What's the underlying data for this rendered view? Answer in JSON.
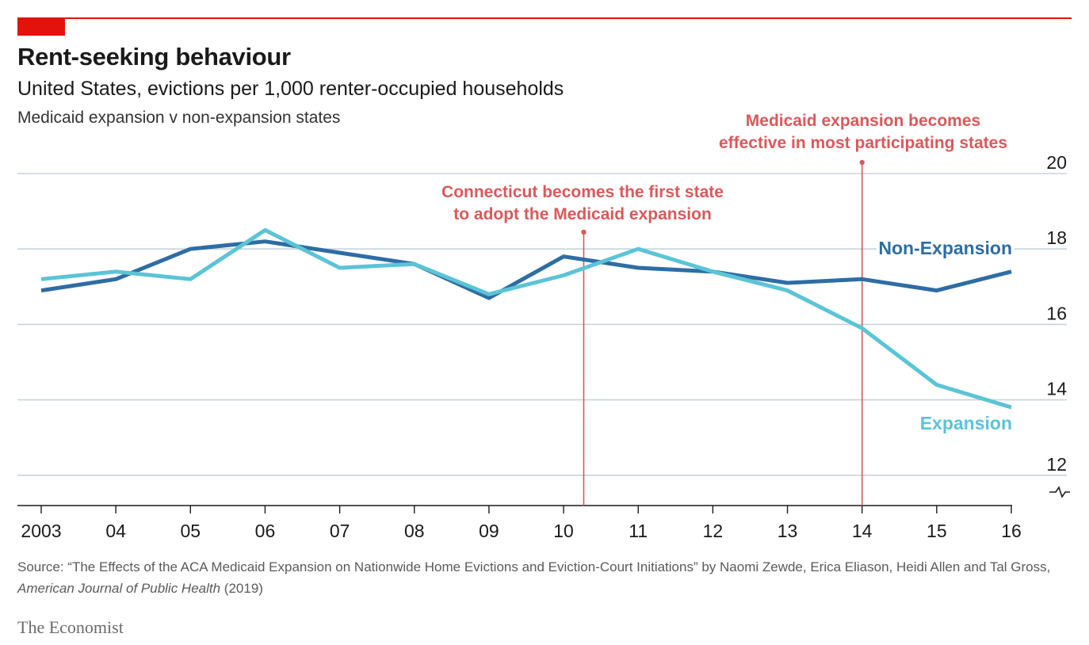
{
  "header": {
    "title": "Rent-seeking behaviour",
    "subtitle": "United States, evictions per 1,000 renter-occupied households",
    "subsubtitle": "Medicaid expansion v non-expansion states"
  },
  "source": {
    "prefix": "Source: “The Effects of the ACA Medicaid Expansion on Nationwide Home Evictions and Eviction-Court Initiations” by Naomi Zewde, Erica Eliason, Heidi Allen and Tal Gross, ",
    "journal": "American Journal of Public Health",
    "suffix": " (2019)"
  },
  "brand": "The Economist",
  "colors": {
    "non_expansion": "#2e6da4",
    "expansion": "#5bc4d6",
    "annotation": "#d9595b",
    "grid": "#c5d3df",
    "accent": "#e3120b"
  },
  "chart_data": {
    "type": "line",
    "x": [
      2003,
      2004,
      2005,
      2006,
      2007,
      2008,
      2009,
      2010,
      2011,
      2012,
      2013,
      2014,
      2015,
      2016
    ],
    "x_tick_labels": [
      "2003",
      "04",
      "05",
      "06",
      "07",
      "08",
      "09",
      "10",
      "11",
      "12",
      "13",
      "14",
      "15",
      "16"
    ],
    "ylim": [
      11.2,
      20
    ],
    "y_ticks": [
      12,
      14,
      16,
      18,
      20
    ],
    "y_axis_break": true,
    "grid": true,
    "series": [
      {
        "name": "Non-Expansion",
        "color": "#2e6da4",
        "values": [
          16.9,
          17.2,
          18.0,
          18.2,
          17.9,
          17.6,
          16.7,
          17.8,
          17.5,
          17.4,
          17.1,
          17.2,
          16.9,
          17.4
        ]
      },
      {
        "name": "Expansion",
        "color": "#5bc4d6",
        "values": [
          17.2,
          17.4,
          17.2,
          18.5,
          17.5,
          17.6,
          16.8,
          17.3,
          18.0,
          17.4,
          16.9,
          15.9,
          14.4,
          13.8
        ]
      }
    ],
    "annotations": [
      {
        "x": 2010.27,
        "lines": [
          "Connecticut becomes the first state",
          "to adopt the Medicaid expansion"
        ]
      },
      {
        "x": 2014.0,
        "lines": [
          "Medicaid expansion becomes",
          "effective in most participating states"
        ]
      }
    ]
  }
}
